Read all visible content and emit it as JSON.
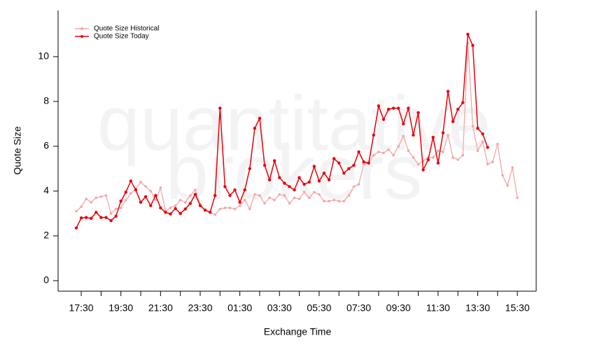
{
  "chart_data": {
    "type": "line",
    "watermark": [
      "quantitative",
      "brokers"
    ],
    "x_label": "Exchange Time",
    "y_label": "Quote Size",
    "x": [
      "17:15",
      "17:30",
      "17:45",
      "18:00",
      "18:15",
      "18:30",
      "18:45",
      "19:00",
      "19:15",
      "19:30",
      "19:45",
      "20:00",
      "20:15",
      "20:30",
      "20:45",
      "21:00",
      "21:15",
      "21:30",
      "21:45",
      "22:00",
      "22:15",
      "22:30",
      "22:45",
      "23:00",
      "23:15",
      "23:30",
      "23:45",
      "00:00",
      "00:15",
      "00:30",
      "00:45",
      "01:00",
      "01:15",
      "01:30",
      "01:45",
      "02:00",
      "02:15",
      "02:30",
      "02:45",
      "03:00",
      "03:15",
      "03:30",
      "03:45",
      "04:00",
      "04:15",
      "04:30",
      "04:45",
      "05:00",
      "05:15",
      "05:30",
      "05:45",
      "06:00",
      "06:15",
      "06:30",
      "06:45",
      "07:00",
      "07:15",
      "07:30",
      "07:45",
      "08:00",
      "08:15",
      "08:30",
      "08:45",
      "09:00",
      "09:15",
      "09:30",
      "09:45",
      "10:00",
      "10:15",
      "10:30",
      "10:45",
      "11:00",
      "11:15",
      "11:30",
      "11:45",
      "12:00",
      "12:15",
      "12:30",
      "12:45",
      "13:00",
      "13:15",
      "13:30",
      "13:45",
      "14:00",
      "14:15",
      "14:30",
      "14:45",
      "15:00",
      "15:15",
      "15:30"
    ],
    "xticks": [
      "17:30",
      "19:30",
      "21:30",
      "23:30",
      "01:30",
      "03:30",
      "05:30",
      "07:30",
      "09:30",
      "11:30",
      "13:30",
      "15:30"
    ],
    "ylim": [
      -0.47,
      12.06
    ],
    "yticks": [
      0,
      2,
      4,
      6,
      8,
      10
    ],
    "legend": "top-left",
    "series": [
      {
        "name": "Quote Size Historical",
        "color": "#f4a6a6",
        "values": [
          3.1,
          3.3,
          3.65,
          3.5,
          3.7,
          3.75,
          3.8,
          3.0,
          3.2,
          3.25,
          3.6,
          3.9,
          4.1,
          4.4,
          4.2,
          4.0,
          3.6,
          4.15,
          3.1,
          3.25,
          3.35,
          3.6,
          3.5,
          3.8,
          4.05,
          3.4,
          3.15,
          3.05,
          2.95,
          3.2,
          3.25,
          3.25,
          3.2,
          3.35,
          3.6,
          3.2,
          3.85,
          3.8,
          3.45,
          3.7,
          3.6,
          3.85,
          3.8,
          3.45,
          3.7,
          3.65,
          3.95,
          3.7,
          3.95,
          3.85,
          3.55,
          3.55,
          3.6,
          3.55,
          3.55,
          3.8,
          4.2,
          4.3,
          5.2,
          5.25,
          5.6,
          5.75,
          5.7,
          5.85,
          5.6,
          6.0,
          6.45,
          5.8,
          5.5,
          5.2,
          5.35,
          5.5,
          5.5,
          5.8,
          5.75,
          6.5,
          5.5,
          5.4,
          5.6,
          10.6,
          6.9,
          5.8,
          6.2,
          5.2,
          5.3,
          6.1,
          4.7,
          4.25,
          5.05,
          3.7
        ]
      },
      {
        "name": "Quote Size Today",
        "color": "#e8000b",
        "values": [
          2.35,
          2.8,
          2.82,
          2.78,
          3.05,
          2.82,
          2.82,
          2.68,
          2.88,
          3.55,
          3.95,
          4.45,
          4.05,
          3.5,
          3.75,
          3.35,
          3.8,
          3.25,
          3.05,
          2.98,
          3.22,
          3.0,
          3.2,
          3.45,
          3.85,
          3.35,
          3.15,
          3.05,
          3.8,
          7.7,
          4.2,
          3.8,
          4.05,
          3.5,
          4.05,
          5.0,
          6.8,
          7.25,
          5.15,
          4.5,
          5.35,
          4.6,
          4.35,
          4.2,
          4.05,
          4.6,
          4.3,
          4.4,
          5.1,
          4.45,
          4.8,
          4.5,
          5.45,
          5.25,
          4.8,
          5.0,
          5.15,
          5.75,
          5.3,
          5.25,
          6.5,
          7.8,
          7.2,
          7.65,
          7.7,
          7.7,
          7.0,
          7.7,
          6.5,
          7.5,
          4.95,
          5.4,
          6.4,
          5.25,
          6.6,
          8.45,
          7.1,
          7.65,
          7.95,
          11.0,
          10.5,
          6.8,
          6.55,
          5.95,
          null,
          null,
          null,
          null,
          null,
          null
        ]
      }
    ]
  }
}
